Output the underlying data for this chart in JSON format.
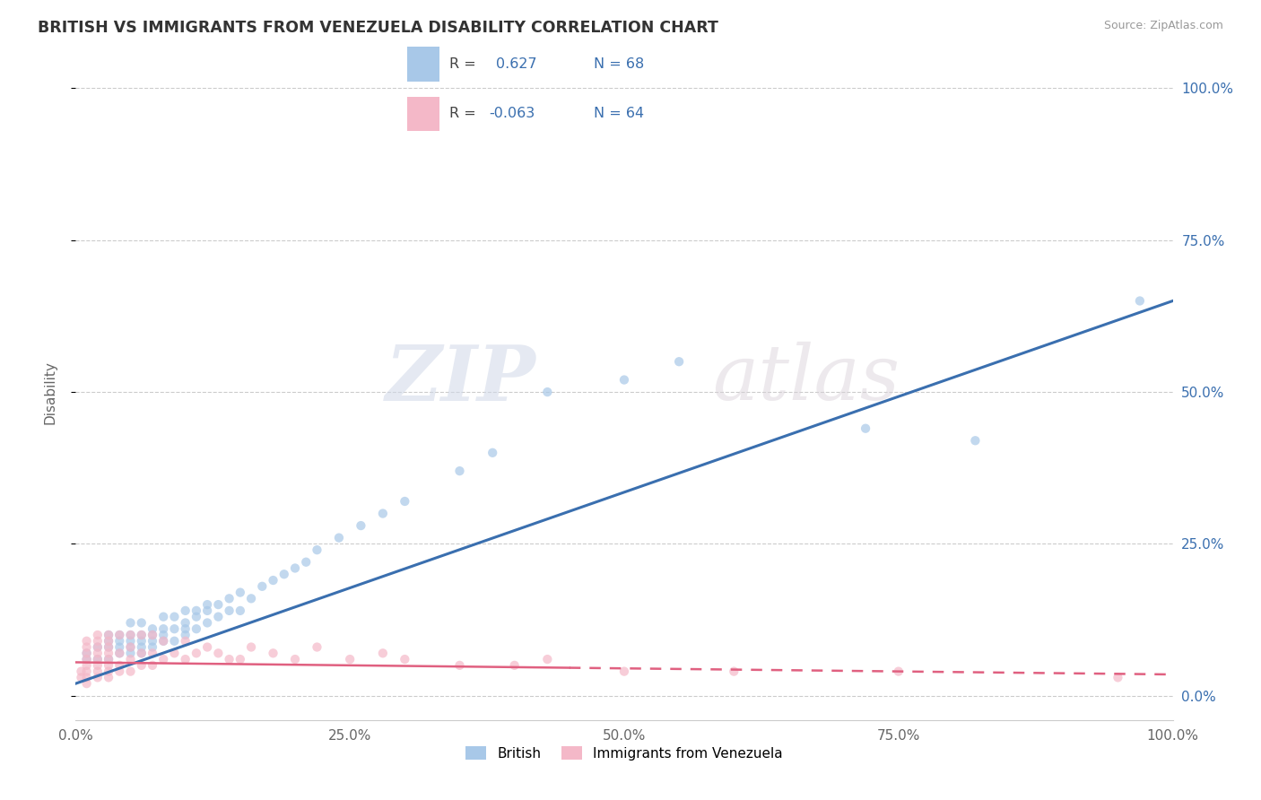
{
  "title": "BRITISH VS IMMIGRANTS FROM VENEZUELA DISABILITY CORRELATION CHART",
  "source": "Source: ZipAtlas.com",
  "ylabel": "Disability",
  "r_british": 0.627,
  "n_british": 68,
  "r_venezuela": -0.063,
  "n_venezuela": 64,
  "blue_color": "#a8c8e8",
  "pink_color": "#f4b8c8",
  "blue_line_color": "#3a6faf",
  "pink_line_color": "#e06080",
  "watermark_zip": "ZIP",
  "watermark_atlas": "atlas",
  "xlim": [
    0,
    1
  ],
  "ylim": [
    -0.04,
    1.04
  ],
  "right_ytick_labels": [
    "0.0%",
    "25.0%",
    "50.0%",
    "75.0%",
    "100.0%"
  ],
  "right_ytick_values": [
    0.0,
    0.25,
    0.5,
    0.75,
    1.0
  ],
  "xtick_labels": [
    "0.0%",
    "25.0%",
    "50.0%",
    "75.0%",
    "100.0%"
  ],
  "xtick_values": [
    0.0,
    0.25,
    0.5,
    0.75,
    1.0
  ],
  "blue_scatter_x": [
    0.01,
    0.01,
    0.02,
    0.02,
    0.03,
    0.03,
    0.03,
    0.03,
    0.04,
    0.04,
    0.04,
    0.04,
    0.05,
    0.05,
    0.05,
    0.05,
    0.05,
    0.06,
    0.06,
    0.06,
    0.06,
    0.06,
    0.07,
    0.07,
    0.07,
    0.07,
    0.08,
    0.08,
    0.08,
    0.08,
    0.09,
    0.09,
    0.09,
    0.1,
    0.1,
    0.1,
    0.1,
    0.11,
    0.11,
    0.11,
    0.12,
    0.12,
    0.12,
    0.13,
    0.13,
    0.14,
    0.14,
    0.15,
    0.15,
    0.16,
    0.17,
    0.18,
    0.19,
    0.2,
    0.21,
    0.22,
    0.24,
    0.26,
    0.28,
    0.3,
    0.35,
    0.38,
    0.43,
    0.5,
    0.55,
    0.72,
    0.82,
    0.97
  ],
  "blue_scatter_y": [
    0.06,
    0.07,
    0.06,
    0.08,
    0.06,
    0.08,
    0.09,
    0.1,
    0.07,
    0.08,
    0.09,
    0.1,
    0.07,
    0.08,
    0.09,
    0.1,
    0.12,
    0.07,
    0.08,
    0.09,
    0.1,
    0.12,
    0.08,
    0.09,
    0.1,
    0.11,
    0.09,
    0.1,
    0.11,
    0.13,
    0.09,
    0.11,
    0.13,
    0.1,
    0.11,
    0.12,
    0.14,
    0.11,
    0.13,
    0.14,
    0.12,
    0.14,
    0.15,
    0.13,
    0.15,
    0.14,
    0.16,
    0.14,
    0.17,
    0.16,
    0.18,
    0.19,
    0.2,
    0.21,
    0.22,
    0.24,
    0.26,
    0.28,
    0.3,
    0.32,
    0.37,
    0.4,
    0.5,
    0.52,
    0.55,
    0.44,
    0.42,
    0.65
  ],
  "pink_scatter_x": [
    0.005,
    0.005,
    0.01,
    0.01,
    0.01,
    0.01,
    0.01,
    0.01,
    0.01,
    0.01,
    0.02,
    0.02,
    0.02,
    0.02,
    0.02,
    0.02,
    0.02,
    0.02,
    0.03,
    0.03,
    0.03,
    0.03,
    0.03,
    0.03,
    0.03,
    0.03,
    0.04,
    0.04,
    0.04,
    0.04,
    0.05,
    0.05,
    0.05,
    0.05,
    0.06,
    0.06,
    0.06,
    0.07,
    0.07,
    0.07,
    0.08,
    0.08,
    0.09,
    0.1,
    0.1,
    0.11,
    0.12,
    0.13,
    0.14,
    0.15,
    0.16,
    0.18,
    0.2,
    0.22,
    0.25,
    0.28,
    0.3,
    0.35,
    0.4,
    0.43,
    0.5,
    0.6,
    0.75,
    0.95
  ],
  "pink_scatter_y": [
    0.03,
    0.04,
    0.02,
    0.03,
    0.04,
    0.05,
    0.06,
    0.07,
    0.08,
    0.09,
    0.03,
    0.04,
    0.05,
    0.06,
    0.07,
    0.08,
    0.09,
    0.1,
    0.03,
    0.04,
    0.05,
    0.06,
    0.07,
    0.08,
    0.09,
    0.1,
    0.04,
    0.05,
    0.07,
    0.1,
    0.04,
    0.06,
    0.08,
    0.1,
    0.05,
    0.07,
    0.1,
    0.05,
    0.07,
    0.1,
    0.06,
    0.09,
    0.07,
    0.06,
    0.09,
    0.07,
    0.08,
    0.07,
    0.06,
    0.06,
    0.08,
    0.07,
    0.06,
    0.08,
    0.06,
    0.07,
    0.06,
    0.05,
    0.05,
    0.06,
    0.04,
    0.04,
    0.04,
    0.03
  ]
}
